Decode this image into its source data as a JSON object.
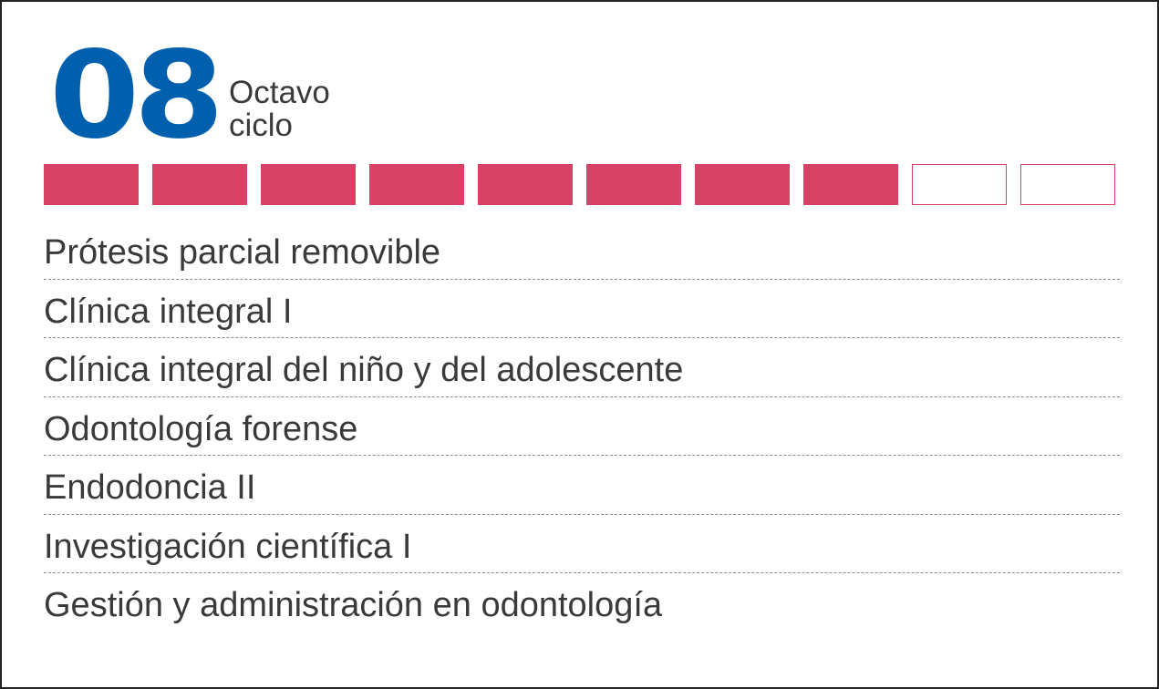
{
  "cycle": {
    "number": "08",
    "name_line1": "Octavo",
    "name_line2": "ciclo"
  },
  "progress": {
    "completed": 8,
    "total": 10,
    "filled_color": "#d84166"
  },
  "colors": {
    "number": "#0060ae",
    "text": "#3a3a3a",
    "accent": "#d84166"
  },
  "courses": [
    "Prótesis parcial removible",
    "Clínica integral I",
    "Clínica integral del niño y del adolescente",
    "Odontología forense",
    "Endodoncia II",
    "Investigación científica I",
    "Gestión y administración en odontología"
  ]
}
